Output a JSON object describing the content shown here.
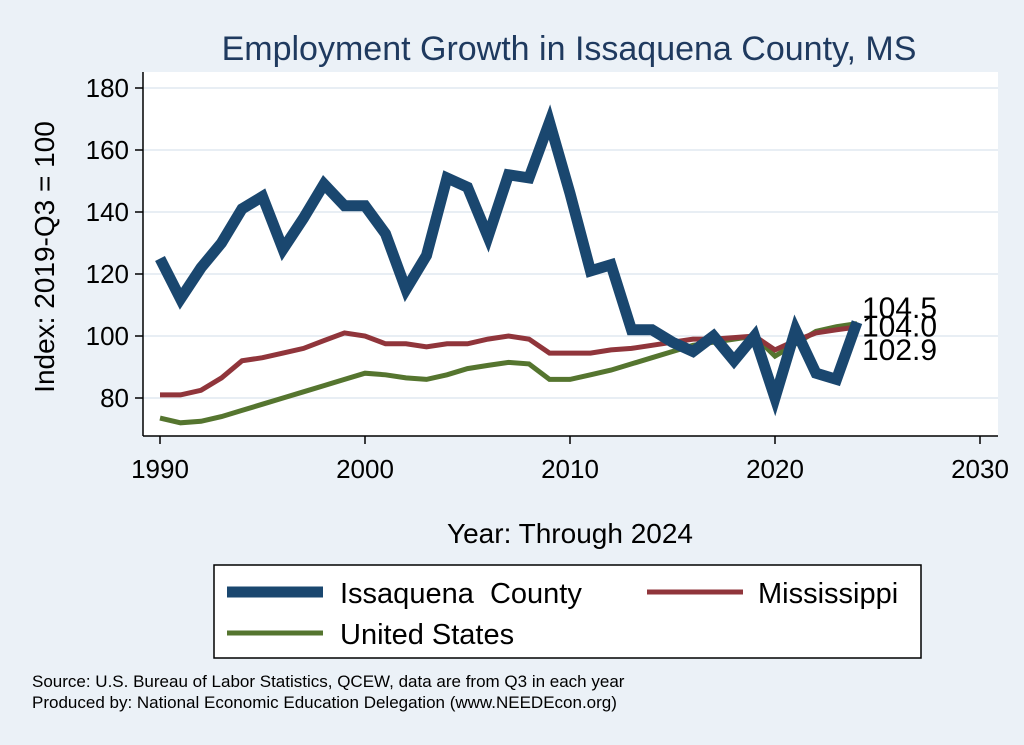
{
  "chart_data": {
    "type": "line",
    "title": "Employment Growth in Issaquena County, MS",
    "xlabel": "Year: Through 2024",
    "ylabel": "Index: 2019-Q3 = 100",
    "xlim": [
      1990,
      2030
    ],
    "ylim": [
      70,
      185
    ],
    "xticks": [
      "1990",
      "2000",
      "2010",
      "2020",
      "2030"
    ],
    "yticks": [
      "80",
      "100",
      "120",
      "140",
      "160",
      "180"
    ],
    "grid": true,
    "legend_position": "bottom",
    "x": [
      1990,
      1991,
      1992,
      1993,
      1994,
      1995,
      1996,
      1997,
      1998,
      1999,
      2000,
      2001,
      2002,
      2003,
      2004,
      2005,
      2006,
      2007,
      2008,
      2009,
      2010,
      2011,
      2012,
      2013,
      2014,
      2015,
      2016,
      2017,
      2018,
      2019,
      2020,
      2021,
      2022,
      2023,
      2024
    ],
    "series": [
      {
        "name": "Issaquena  County",
        "color": "#1a476f",
        "values": [
          125,
          112,
          122,
          130,
          141,
          145,
          128,
          138,
          149,
          142,
          142,
          133,
          115,
          126,
          151,
          148,
          132,
          152,
          151,
          169,
          146,
          121,
          123,
          102,
          102,
          98,
          95,
          100,
          92,
          100,
          80,
          102,
          88,
          86,
          104.5
        ]
      },
      {
        "name": "Mississippi",
        "color": "#90353b",
        "values": [
          81,
          81,
          82.5,
          86.5,
          92,
          93,
          94.5,
          96,
          98.5,
          101,
          100,
          97.5,
          97.5,
          96.5,
          97.5,
          97.5,
          99,
          100,
          99,
          94.5,
          94.5,
          94.5,
          95.5,
          96,
          97,
          98,
          99,
          99,
          99.5,
          100,
          95.5,
          98.5,
          101,
          102,
          102.9
        ]
      },
      {
        "name": "United States",
        "color": "#55752f",
        "values": [
          73.5,
          72,
          72.5,
          74,
          76,
          78,
          80,
          82,
          84,
          86,
          88,
          87.5,
          86.5,
          86,
          87.5,
          89.5,
          90.5,
          91.5,
          91,
          86,
          86,
          87.5,
          89,
          91,
          93,
          95,
          97,
          98,
          99,
          100,
          93.5,
          97.5,
          101.5,
          103,
          104
        ]
      }
    ],
    "end_labels": [
      "104.5",
      "104.0",
      "102.9"
    ],
    "notes": [
      "Source: U.S. Bureau of Labor Statistics, QCEW, data are from Q3 in each year",
      "Produced by: National Economic Education Delegation (www.NEEDEcon.org)"
    ]
  }
}
